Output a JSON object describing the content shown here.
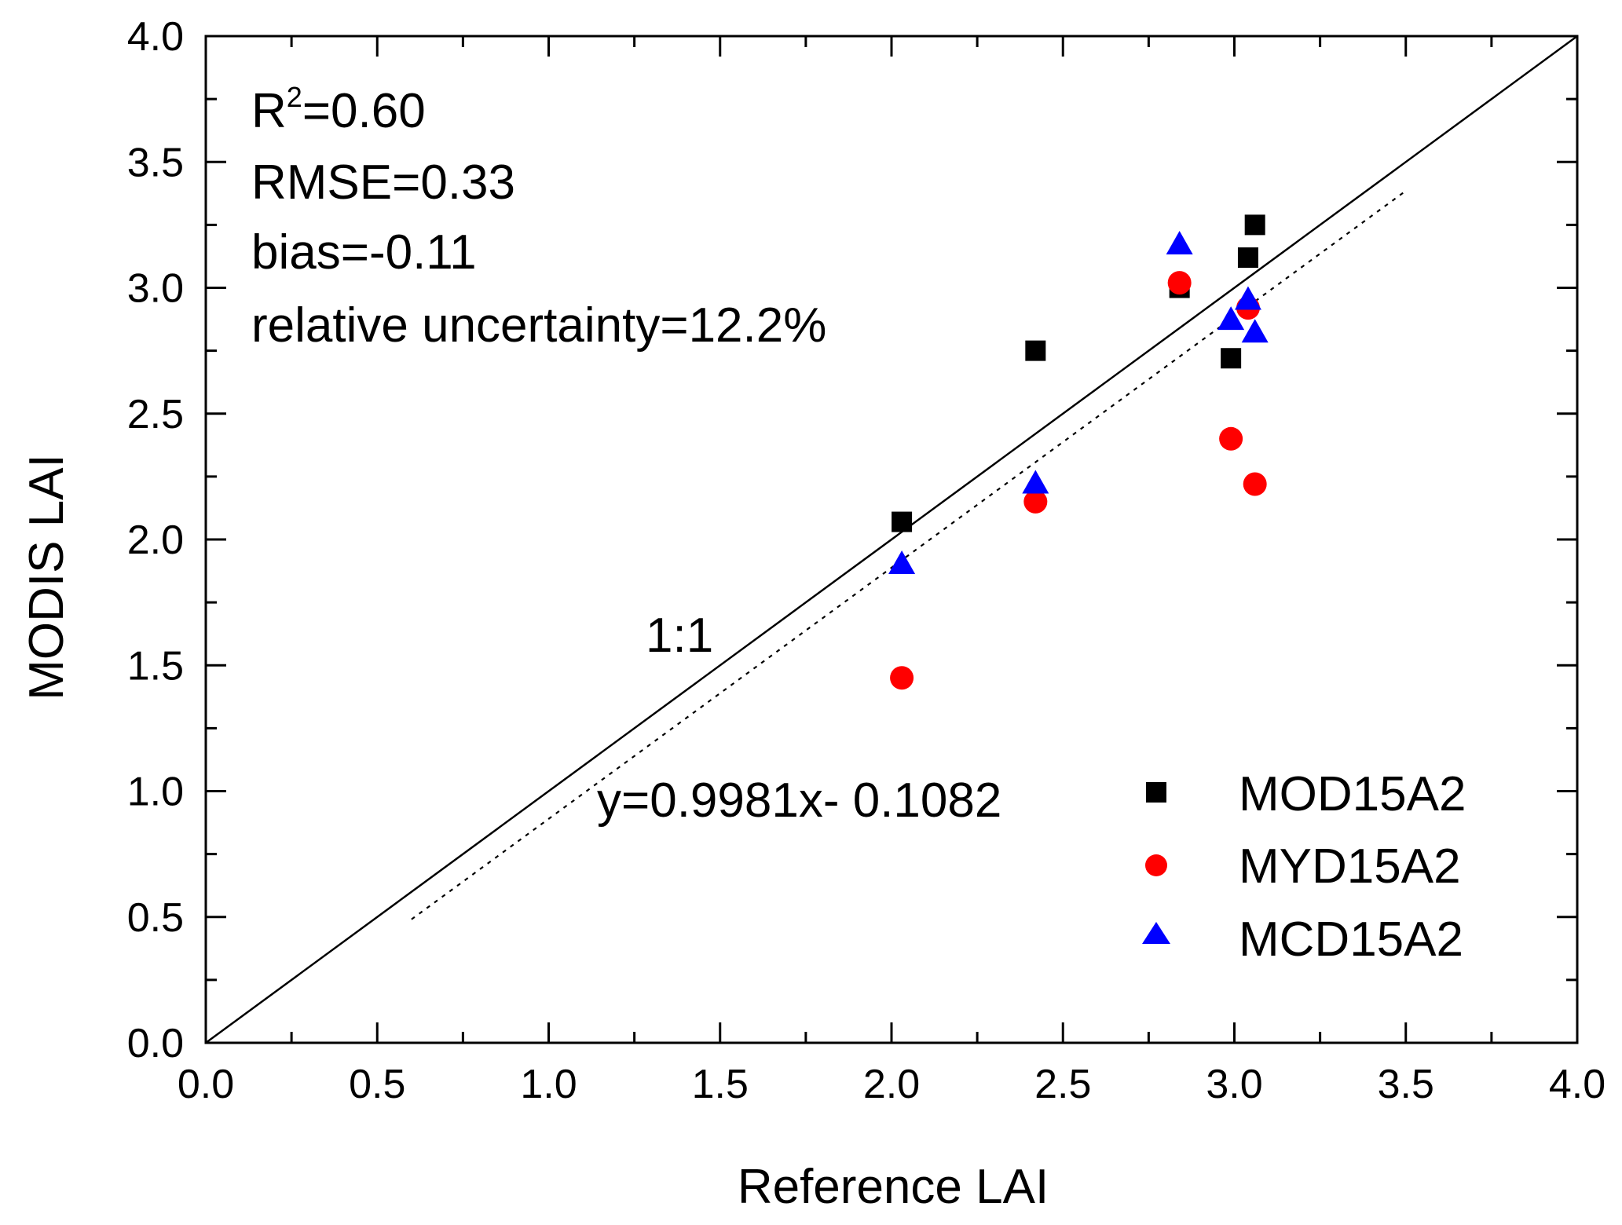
{
  "chart_data": {
    "type": "scatter",
    "xlabel": "Reference LAI",
    "ylabel": "MODIS LAI",
    "xlim": [
      0.0,
      4.0
    ],
    "ylim": [
      0.0,
      4.0
    ],
    "x_ticks": [
      "0.0",
      "0.5",
      "1.0",
      "1.5",
      "2.0",
      "2.5",
      "3.0",
      "3.5",
      "4.0"
    ],
    "y_ticks": [
      "0.0",
      "0.5",
      "1.0",
      "1.5",
      "2.0",
      "2.5",
      "3.0",
      "3.5",
      "4.0"
    ],
    "grid": false,
    "legend_position": "bottom-right",
    "series": [
      {
        "name": "MOD15A2",
        "marker": "square",
        "color": "#000000",
        "points": [
          [
            2.03,
            2.07
          ],
          [
            2.42,
            2.75
          ],
          [
            2.84,
            3.0
          ],
          [
            2.99,
            2.72
          ],
          [
            3.04,
            3.12
          ],
          [
            3.06,
            3.25
          ]
        ]
      },
      {
        "name": "MYD15A2",
        "marker": "circle",
        "color": "#ff0000",
        "points": [
          [
            2.03,
            1.45
          ],
          [
            2.42,
            2.15
          ],
          [
            2.84,
            3.02
          ],
          [
            2.99,
            2.4
          ],
          [
            3.04,
            2.92
          ],
          [
            3.06,
            2.22
          ]
        ]
      },
      {
        "name": "MCD15A2",
        "marker": "triangle",
        "color": "#0000ff",
        "points": [
          [
            2.03,
            1.9
          ],
          [
            2.42,
            2.22
          ],
          [
            2.84,
            3.17
          ],
          [
            2.99,
            2.87
          ],
          [
            3.04,
            2.95
          ],
          [
            3.06,
            2.82
          ]
        ]
      }
    ],
    "reference_line": {
      "label": "1:1",
      "slope": 1.0,
      "intercept": 0.0,
      "x_range": [
        0.0,
        4.0
      ]
    },
    "fit_line": {
      "label": "y=0.9981x- 0.1082",
      "slope": 0.9981,
      "intercept": -0.1082,
      "x_range": [
        0.6,
        3.5
      ]
    },
    "stats": {
      "r2_prefix": "R",
      "r2_superscript": "2",
      "r2_value": "=0.60",
      "rmse": "RMSE=0.33",
      "bias": "bias=-0.11",
      "uncertainty": "relative uncertainty=12.2%"
    }
  }
}
